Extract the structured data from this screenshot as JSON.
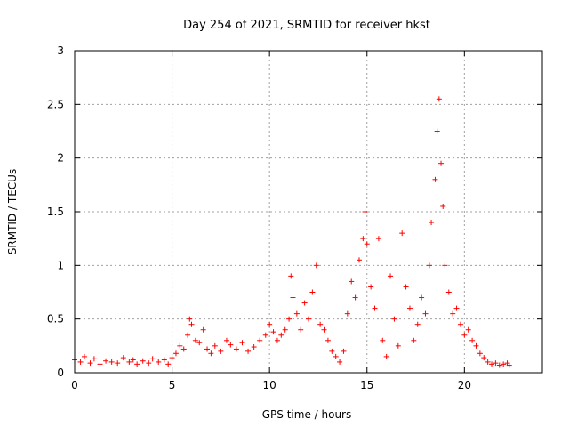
{
  "chart_data": {
    "type": "scatter",
    "title": "Day 254 of 2021, SRMTID for receiver hkst",
    "xlabel": "GPS time / hours",
    "ylabel": "SRMTID / TECUs",
    "xlim": [
      0,
      24
    ],
    "ylim": [
      0,
      3
    ],
    "xticks": [
      0,
      5,
      10,
      15,
      20
    ],
    "yticks": [
      0,
      0.5,
      1,
      1.5,
      2,
      2.5,
      3
    ],
    "x_tick_labels": [
      "0",
      "5",
      "10",
      "15",
      "20"
    ],
    "y_tick_labels": [
      "0",
      "0.5",
      "1",
      "1.5",
      "2",
      "2.5",
      "3"
    ],
    "grid": true,
    "marker": "+",
    "series_color": "#ff0000",
    "series": [
      {
        "name": "SRMTID",
        "points": [
          [
            0.0,
            0.12
          ],
          [
            0.3,
            0.1
          ],
          [
            0.5,
            0.15
          ],
          [
            0.8,
            0.09
          ],
          [
            1.0,
            0.13
          ],
          [
            1.3,
            0.08
          ],
          [
            1.6,
            0.11
          ],
          [
            1.9,
            0.1
          ],
          [
            2.2,
            0.09
          ],
          [
            2.5,
            0.14
          ],
          [
            2.8,
            0.1
          ],
          [
            3.0,
            0.12
          ],
          [
            3.2,
            0.08
          ],
          [
            3.5,
            0.11
          ],
          [
            3.8,
            0.09
          ],
          [
            4.0,
            0.13
          ],
          [
            4.3,
            0.1
          ],
          [
            4.6,
            0.12
          ],
          [
            4.8,
            0.08
          ],
          [
            5.0,
            0.14
          ],
          [
            5.2,
            0.18
          ],
          [
            5.4,
            0.25
          ],
          [
            5.6,
            0.22
          ],
          [
            5.8,
            0.35
          ],
          [
            5.9,
            0.5
          ],
          [
            6.0,
            0.45
          ],
          [
            6.2,
            0.3
          ],
          [
            6.4,
            0.28
          ],
          [
            6.6,
            0.4
          ],
          [
            6.8,
            0.22
          ],
          [
            7.0,
            0.18
          ],
          [
            7.2,
            0.25
          ],
          [
            7.5,
            0.2
          ],
          [
            7.8,
            0.3
          ],
          [
            8.0,
            0.26
          ],
          [
            8.3,
            0.22
          ],
          [
            8.6,
            0.28
          ],
          [
            8.9,
            0.2
          ],
          [
            9.2,
            0.24
          ],
          [
            9.5,
            0.3
          ],
          [
            9.8,
            0.35
          ],
          [
            10.0,
            0.45
          ],
          [
            10.2,
            0.38
          ],
          [
            10.4,
            0.3
          ],
          [
            10.6,
            0.35
          ],
          [
            10.8,
            0.4
          ],
          [
            11.0,
            0.5
          ],
          [
            11.1,
            0.9
          ],
          [
            11.2,
            0.7
          ],
          [
            11.4,
            0.55
          ],
          [
            11.6,
            0.4
          ],
          [
            11.8,
            0.65
          ],
          [
            12.0,
            0.5
          ],
          [
            12.2,
            0.75
          ],
          [
            12.4,
            1.0
          ],
          [
            12.6,
            0.45
          ],
          [
            12.8,
            0.4
          ],
          [
            13.0,
            0.3
          ],
          [
            13.2,
            0.2
          ],
          [
            13.4,
            0.15
          ],
          [
            13.6,
            0.1
          ],
          [
            13.8,
            0.2
          ],
          [
            14.0,
            0.55
          ],
          [
            14.2,
            0.85
          ],
          [
            14.4,
            0.7
          ],
          [
            14.6,
            1.05
          ],
          [
            14.8,
            1.25
          ],
          [
            14.9,
            1.5
          ],
          [
            15.0,
            1.2
          ],
          [
            15.2,
            0.8
          ],
          [
            15.4,
            0.6
          ],
          [
            15.6,
            1.25
          ],
          [
            15.8,
            0.3
          ],
          [
            16.0,
            0.15
          ],
          [
            16.2,
            0.9
          ],
          [
            16.4,
            0.5
          ],
          [
            16.6,
            0.25
          ],
          [
            16.8,
            1.3
          ],
          [
            17.0,
            0.8
          ],
          [
            17.2,
            0.6
          ],
          [
            17.4,
            0.3
          ],
          [
            17.6,
            0.45
          ],
          [
            17.8,
            0.7
          ],
          [
            18.0,
            0.55
          ],
          [
            18.2,
            1.0
          ],
          [
            18.3,
            1.4
          ],
          [
            18.5,
            1.8
          ],
          [
            18.6,
            2.25
          ],
          [
            18.7,
            2.55
          ],
          [
            18.8,
            1.95
          ],
          [
            18.9,
            1.55
          ],
          [
            19.0,
            1.0
          ],
          [
            19.2,
            0.75
          ],
          [
            19.4,
            0.55
          ],
          [
            19.6,
            0.6
          ],
          [
            19.8,
            0.45
          ],
          [
            20.0,
            0.35
          ],
          [
            20.2,
            0.4
          ],
          [
            20.4,
            0.3
          ],
          [
            20.6,
            0.25
          ],
          [
            20.8,
            0.18
          ],
          [
            21.0,
            0.14
          ],
          [
            21.2,
            0.1
          ],
          [
            21.4,
            0.08
          ],
          [
            21.6,
            0.09
          ],
          [
            21.8,
            0.07
          ],
          [
            22.0,
            0.08
          ],
          [
            22.2,
            0.09
          ],
          [
            22.3,
            0.07
          ]
        ]
      }
    ]
  }
}
